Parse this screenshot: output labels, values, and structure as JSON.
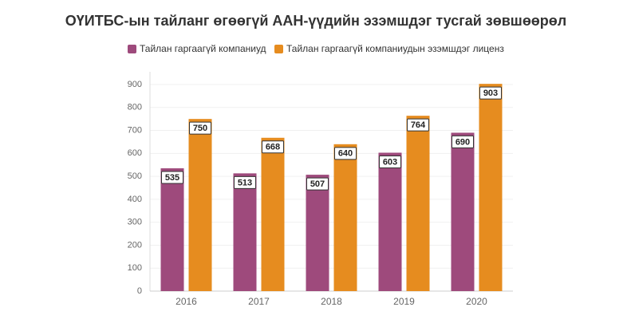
{
  "chart_data": {
    "type": "bar",
    "title": "ОҮИТБС-ын тайланг өгөөгүй ААН-үүдийн эзэмшдэг тусгай зөвшөөрөл",
    "categories": [
      "2016",
      "2017",
      "2018",
      "2019",
      "2020"
    ],
    "series": [
      {
        "name": "Тайлан гаргаагүй компаниуд",
        "color": "#9e4a7c",
        "values": [
          535,
          513,
          507,
          603,
          690
        ]
      },
      {
        "name": "Тайлан гаргаагүй компаниудын эзэмшдэг лиценз",
        "color": "#e68c1f",
        "values": [
          750,
          668,
          640,
          764,
          903
        ]
      }
    ],
    "ylim": [
      0,
      900
    ],
    "yticks": [
      0,
      100,
      200,
      300,
      400,
      500,
      600,
      700,
      800,
      900
    ],
    "grid": true
  }
}
